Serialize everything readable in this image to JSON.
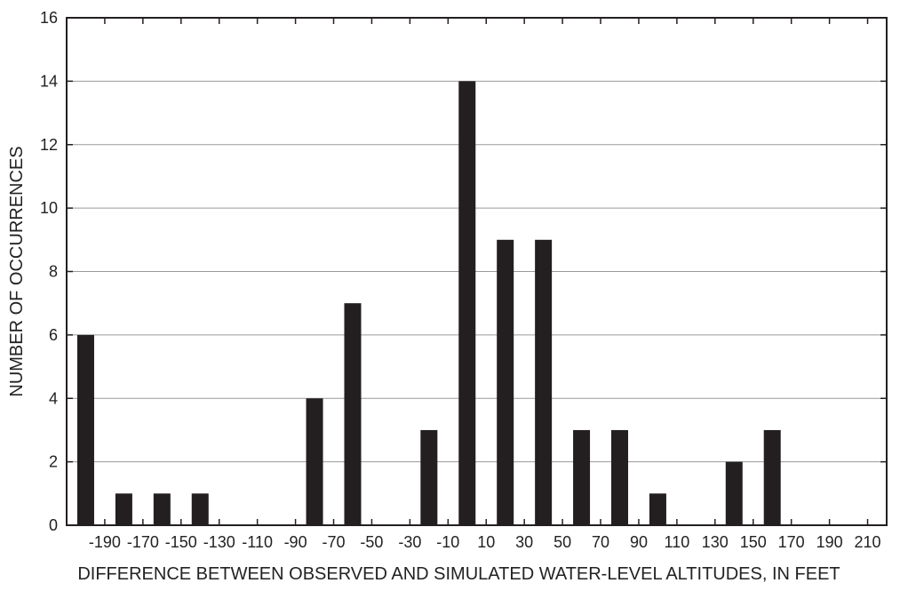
{
  "chart_data": {
    "type": "bar",
    "title": "",
    "xlabel": "DIFFERENCE BETWEEN OBSERVED AND SIMULATED WATER-LEVEL ALTITUDES, IN FEET",
    "ylabel": "NUMBER OF OCCURRENCES",
    "x_bin_labels": [
      "-190",
      "-170",
      "-150",
      "-130",
      "-110",
      "-90",
      "-70",
      "-50",
      "-30",
      "-10",
      "10",
      "30",
      "50",
      "70",
      "90",
      "110",
      "130",
      "150",
      "170",
      "190",
      "210"
    ],
    "ylim": [
      0,
      16
    ],
    "yticks": [
      0,
      2,
      4,
      6,
      8,
      10,
      12,
      14,
      16
    ],
    "grid": "horizontal",
    "bars": [
      {
        "center": -200,
        "value": 6
      },
      {
        "center": -180,
        "value": 1
      },
      {
        "center": -160,
        "value": 1
      },
      {
        "center": -140,
        "value": 1
      },
      {
        "center": -120,
        "value": 0
      },
      {
        "center": -100,
        "value": 0
      },
      {
        "center": -80,
        "value": 4
      },
      {
        "center": -60,
        "value": 7
      },
      {
        "center": -40,
        "value": 0
      },
      {
        "center": -20,
        "value": 3
      },
      {
        "center": 0,
        "value": 14
      },
      {
        "center": 20,
        "value": 9
      },
      {
        "center": 40,
        "value": 9
      },
      {
        "center": 60,
        "value": 3
      },
      {
        "center": 80,
        "value": 3
      },
      {
        "center": 100,
        "value": 1
      },
      {
        "center": 120,
        "value": 0
      },
      {
        "center": 140,
        "value": 2
      },
      {
        "center": 160,
        "value": 3
      },
      {
        "center": 180,
        "value": 0
      },
      {
        "center": 200,
        "value": 0
      }
    ],
    "bar_color": "#231f20",
    "grid_color": "#9a9a9a"
  }
}
